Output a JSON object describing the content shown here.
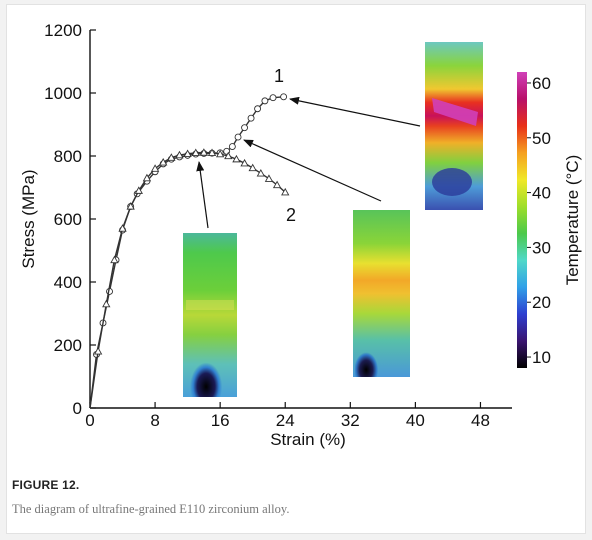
{
  "figure": {
    "label": "FIGURE 12.",
    "caption": "The diagram of ultrafine-grained E110 zirconium alloy."
  },
  "chart_data": {
    "type": "line",
    "xlabel": "Strain (%)",
    "ylabel": "Stress (MPa)",
    "xlim": [
      0,
      52
    ],
    "ylim": [
      0,
      1200
    ],
    "x_ticks": [
      0,
      8,
      16,
      24,
      32,
      40,
      48
    ],
    "y_ticks": [
      0,
      200,
      400,
      600,
      800,
      1000,
      1200
    ],
    "grid": false,
    "series": [
      {
        "name": "1",
        "marker": "circle",
        "color": "#333333",
        "points": [
          [
            0,
            0
          ],
          [
            0.8,
            170
          ],
          [
            1.6,
            270
          ],
          [
            2.4,
            370
          ],
          [
            3.2,
            470
          ],
          [
            4.0,
            565
          ],
          [
            5.0,
            640
          ],
          [
            5.8,
            680
          ],
          [
            7.0,
            720
          ],
          [
            8.0,
            750
          ],
          [
            9.0,
            775
          ],
          [
            10.0,
            790
          ],
          [
            11.0,
            797
          ],
          [
            12.0,
            802
          ],
          [
            13.0,
            806
          ],
          [
            14.0,
            808
          ],
          [
            15.0,
            809
          ],
          [
            16.0,
            810
          ],
          [
            16.8,
            815
          ],
          [
            17.5,
            830
          ],
          [
            18.2,
            860
          ],
          [
            19.0,
            890
          ],
          [
            19.8,
            920
          ],
          [
            20.6,
            950
          ],
          [
            21.5,
            975
          ],
          [
            22.5,
            985
          ],
          [
            23.8,
            988
          ]
        ]
      },
      {
        "name": "2",
        "marker": "triangle",
        "color": "#333333",
        "points": [
          [
            0,
            0
          ],
          [
            1,
            180
          ],
          [
            2,
            330
          ],
          [
            3,
            470
          ],
          [
            4,
            570
          ],
          [
            5,
            640
          ],
          [
            6,
            690
          ],
          [
            7,
            730
          ],
          [
            8,
            760
          ],
          [
            9,
            780
          ],
          [
            10,
            795
          ],
          [
            11,
            803
          ],
          [
            12,
            807
          ],
          [
            13,
            810
          ],
          [
            14,
            811
          ],
          [
            15,
            810
          ],
          [
            16,
            806
          ],
          [
            17,
            800
          ],
          [
            18,
            790
          ],
          [
            19,
            777
          ],
          [
            20,
            762
          ],
          [
            21,
            745
          ],
          [
            22,
            728
          ],
          [
            23,
            708
          ],
          [
            24,
            685
          ]
        ]
      }
    ],
    "colorbar": {
      "label": "Temperature (°C)",
      "ticks": [
        10,
        20,
        30,
        40,
        50,
        60
      ],
      "range": [
        8,
        62
      ],
      "colors": [
        "#000000",
        "#3a1470",
        "#2e3fd0",
        "#30a0e8",
        "#50d8c8",
        "#4cc94a",
        "#9ede2a",
        "#f0e828",
        "#f5a020",
        "#e83018",
        "#b8106a",
        "#d040b8"
      ]
    },
    "thermal_insets": [
      {
        "name": "inset-yield",
        "points_to": [
          14.5,
          795
        ],
        "tip": "yield"
      },
      {
        "name": "inset-neck",
        "points_to": [
          18.5,
          858
        ],
        "tip": "neck"
      },
      {
        "name": "inset-fracture",
        "points_to": [
          24.2,
          988
        ],
        "tip": "fracture"
      }
    ]
  }
}
